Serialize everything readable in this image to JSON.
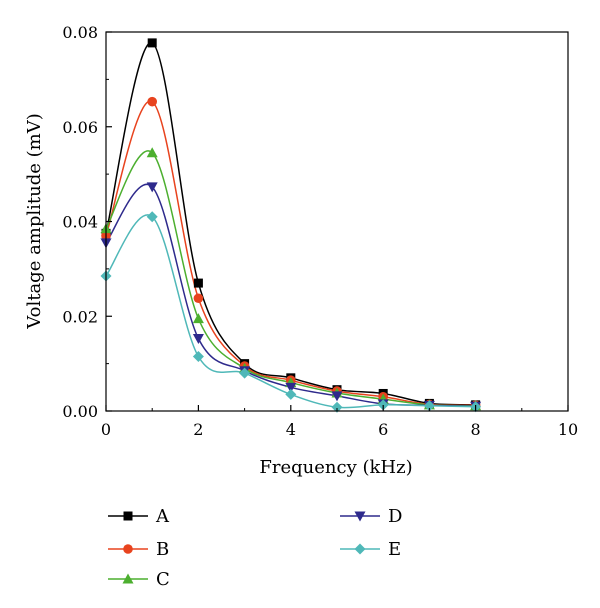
{
  "chart_data": {
    "type": "line",
    "title": "",
    "xlabel": "Frequency (kHz)",
    "ylabel": "Voltage amplitude (mV)",
    "xlim": [
      0,
      10
    ],
    "ylim": [
      0,
      0.08
    ],
    "x_ticks": [
      "0",
      "2",
      "4",
      "6",
      "8",
      "10"
    ],
    "y_ticks": [
      "0.00",
      "0.02",
      "0.04",
      "0.06",
      "0.08"
    ],
    "grid": false,
    "legend_position": "bottom",
    "x": [
      0,
      1,
      2,
      3,
      4,
      5,
      6,
      7,
      8
    ],
    "series": [
      {
        "name": "A",
        "color": "#000000",
        "marker": "square",
        "values": [
          0.0375,
          0.0777,
          0.027,
          0.01,
          0.007,
          0.0045,
          0.0037,
          0.0016,
          0.0013
        ]
      },
      {
        "name": "B",
        "color": "#e8431e",
        "marker": "circle",
        "values": [
          0.037,
          0.0653,
          0.0238,
          0.0095,
          0.0065,
          0.0042,
          0.003,
          0.0014,
          0.0012
        ]
      },
      {
        "name": "C",
        "color": "#4caf2f",
        "marker": "triangle-up",
        "values": [
          0.0385,
          0.0545,
          0.0195,
          0.009,
          0.006,
          0.0038,
          0.0025,
          0.0013,
          0.0011
        ]
      },
      {
        "name": "D",
        "color": "#2e2a8c",
        "marker": "triangle-down",
        "values": [
          0.0355,
          0.0473,
          0.0153,
          0.0085,
          0.005,
          0.0032,
          0.0015,
          0.0012,
          0.001
        ]
      },
      {
        "name": "E",
        "color": "#4fb8b8",
        "marker": "diamond",
        "values": [
          0.0285,
          0.041,
          0.0115,
          0.008,
          0.0035,
          0.0008,
          0.0013,
          0.0011,
          0.0009
        ]
      }
    ]
  }
}
